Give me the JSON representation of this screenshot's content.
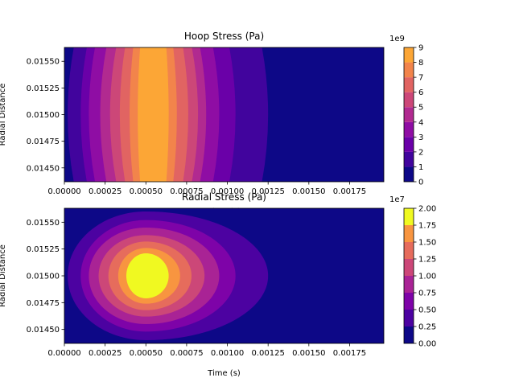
{
  "chart_data": [
    {
      "type": "heatmap",
      "subtype": "filled-contour",
      "title": "Hoop Stress (Pa)",
      "xlabel": "Time (s)",
      "ylabel": "Radial Distance",
      "xlim": [
        0.0,
        0.00196
      ],
      "ylim": [
        0.01437,
        0.01563
      ],
      "x_ticks": [
        "0.00000",
        "0.00025",
        "0.00050",
        "0.00075",
        "0.00100",
        "0.00125",
        "0.00150",
        "0.00175"
      ],
      "y_ticks": [
        "0.01450",
        "0.01475",
        "0.01500",
        "0.01525",
        "0.01550"
      ],
      "colorbar": {
        "offset_label": "1e9",
        "ticks": [
          "0",
          "1",
          "2",
          "3",
          "4",
          "5",
          "6",
          "7",
          "8",
          "9"
        ],
        "levels": [
          0,
          1,
          2,
          3,
          4,
          5,
          6,
          7,
          8,
          9
        ],
        "colormap": "plasma"
      },
      "bands": [
        {
          "level": 0,
          "color": "#0d0887",
          "x_range": [
            0.0,
            0.00196
          ]
        },
        {
          "level": 1,
          "color": "#41049d",
          "x_range": [
            2e-05,
            0.00125
          ]
        },
        {
          "level": 2,
          "color": "#6a00a8",
          "x_range": [
            0.0001,
            0.00105
          ]
        },
        {
          "level": 3,
          "color": "#8f0da4",
          "x_range": [
            0.00015,
            0.00095
          ]
        },
        {
          "level": 4,
          "color": "#b12a90",
          "x_range": [
            0.00022,
            0.00087
          ]
        },
        {
          "level": 5,
          "color": "#cc4778",
          "x_range": [
            0.00028,
            0.00082
          ]
        },
        {
          "level": 6,
          "color": "#e16462",
          "x_range": [
            0.00034,
            0.00076
          ]
        },
        {
          "level": 7,
          "color": "#f2844b",
          "x_range": [
            0.0004,
            0.00069
          ]
        },
        {
          "level": 8,
          "color": "#fca636",
          "x_range": [
            0.00045,
            0.00064
          ]
        }
      ]
    },
    {
      "type": "heatmap",
      "subtype": "filled-contour",
      "title": "Radial Stress (Pa)",
      "xlabel": "Time (s)",
      "ylabel": "Radial Distance",
      "xlim": [
        0.0,
        0.00196
      ],
      "ylim": [
        0.01437,
        0.01563
      ],
      "x_ticks": [
        "0.00000",
        "0.00025",
        "0.00050",
        "0.00075",
        "0.00100",
        "0.00125",
        "0.00150",
        "0.00175"
      ],
      "y_ticks": [
        "0.01450",
        "0.01475",
        "0.01500",
        "0.01525",
        "0.01550"
      ],
      "colorbar": {
        "offset_label": "1e7",
        "ticks": [
          "0.00",
          "0.25",
          "0.50",
          "0.75",
          "1.00",
          "1.25",
          "1.50",
          "1.75",
          "2.00"
        ],
        "levels": [
          0,
          0.25,
          0.5,
          0.75,
          1.0,
          1.25,
          1.5,
          1.75,
          2.0
        ],
        "colormap": "plasma"
      },
      "peak": {
        "x": 0.0005,
        "y": 0.015
      },
      "bands": [
        {
          "level": 0.0,
          "color": "#0d0887",
          "x_range": [
            0.0,
            0.00196
          ],
          "y_range": [
            0.01437,
            0.01563
          ]
        },
        {
          "level": 0.25,
          "color": "#4c02a1",
          "x_range": [
            2e-05,
            0.00125
          ],
          "y_range": [
            0.0144,
            0.0156
          ]
        },
        {
          "level": 0.5,
          "color": "#7e03a8",
          "x_range": [
            0.0001,
            0.00105
          ],
          "y_range": [
            0.01448,
            0.01552
          ]
        },
        {
          "level": 0.75,
          "color": "#a92395",
          "x_range": [
            0.00015,
            0.00095
          ],
          "y_range": [
            0.01455,
            0.01545
          ]
        },
        {
          "level": 1.0,
          "color": "#cc4778",
          "x_range": [
            0.00021,
            0.00086
          ],
          "y_range": [
            0.01462,
            0.01538
          ]
        },
        {
          "level": 1.25,
          "color": "#e66c5c",
          "x_range": [
            0.00027,
            0.00078
          ],
          "y_range": [
            0.01468,
            0.01532
          ]
        },
        {
          "level": 1.5,
          "color": "#f89540",
          "x_range": [
            0.00033,
            0.00071
          ],
          "y_range": [
            0.01474,
            0.01526
          ]
        },
        {
          "level": 1.75,
          "color": "#f0f921",
          "x_range": [
            0.00038,
            0.00064
          ],
          "y_range": [
            0.01479,
            0.01521
          ]
        }
      ]
    }
  ]
}
